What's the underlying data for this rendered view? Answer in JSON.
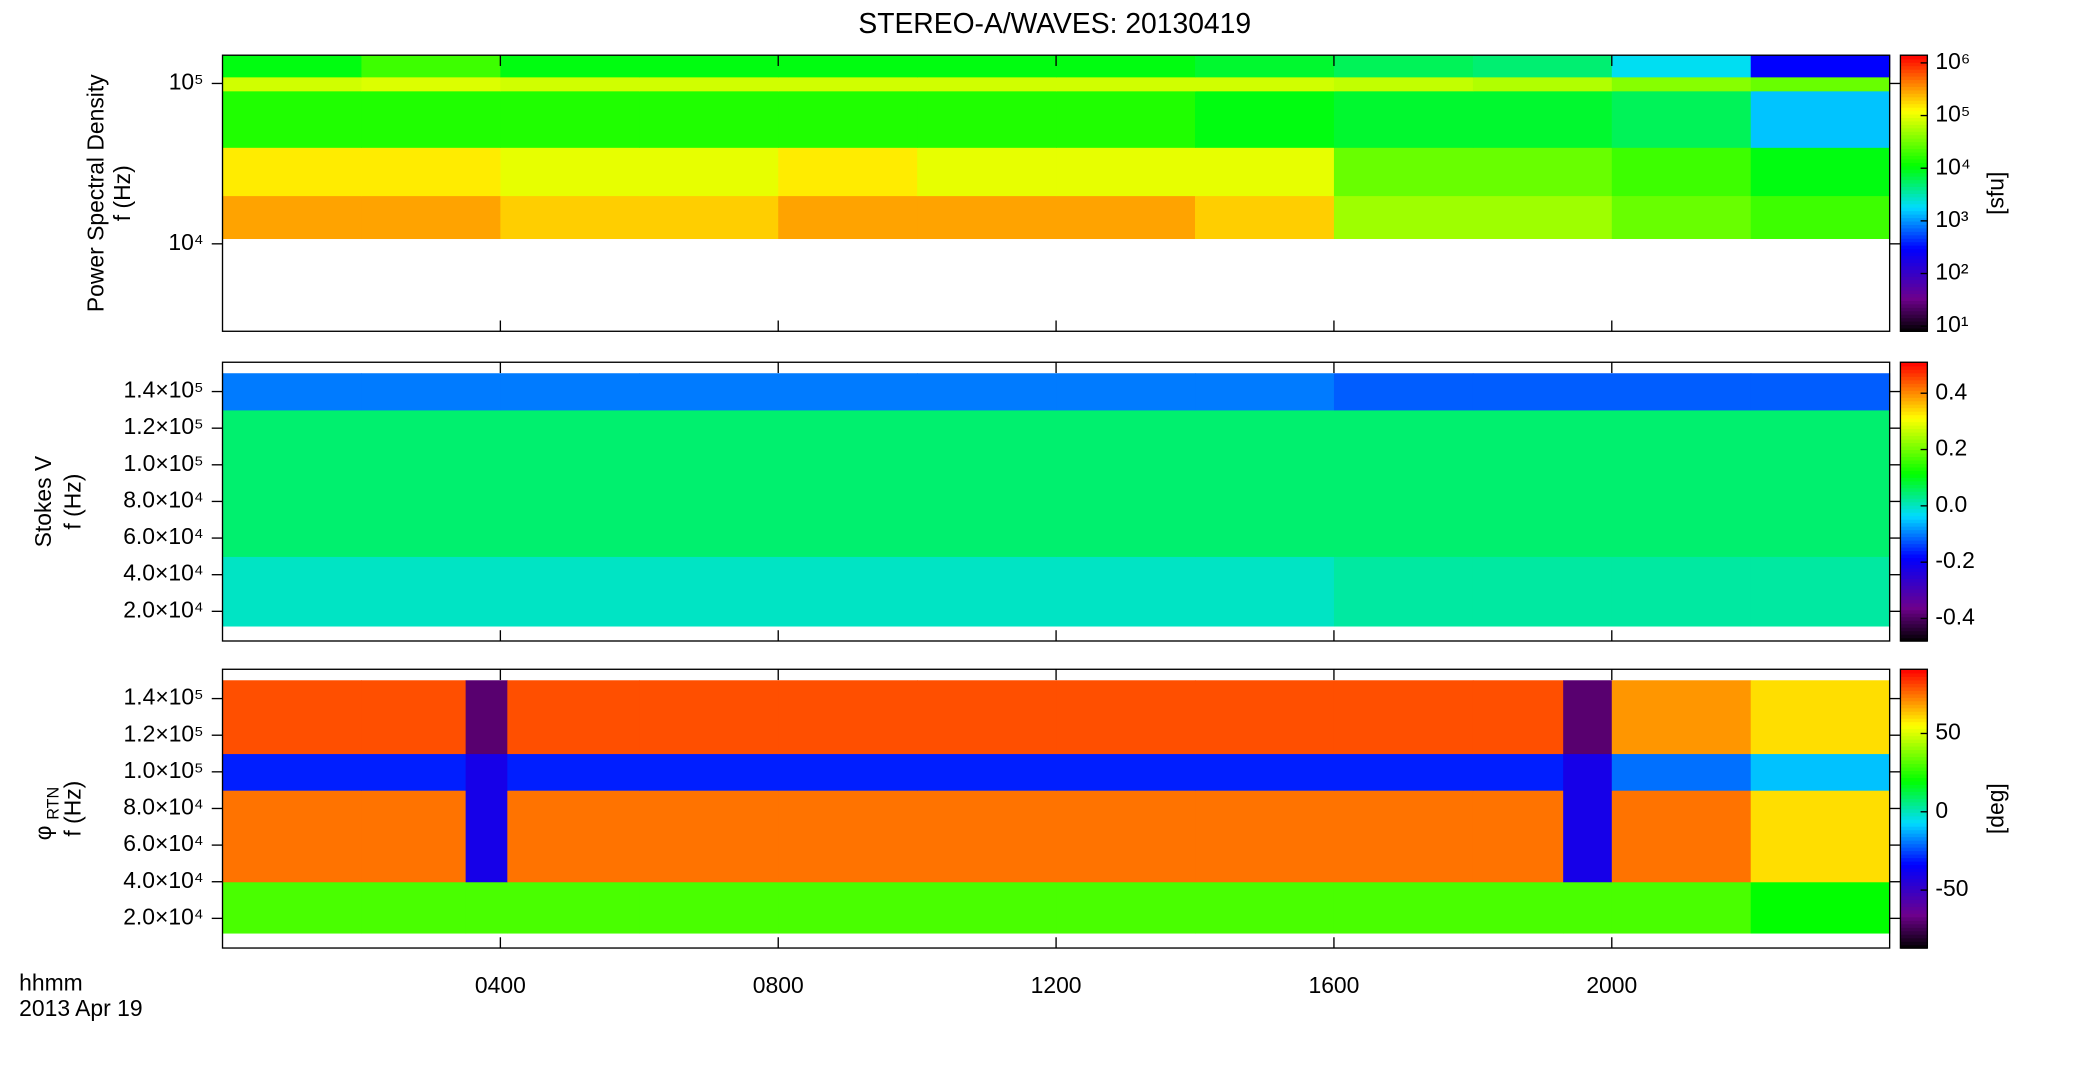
{
  "chart_data": [
    {
      "type": "heatmap",
      "title": "STEREO-A/WAVES: 20130419",
      "y_label": [
        "Power Spectral Density",
        "f (Hz)"
      ],
      "yscale": "log",
      "ylim": [
        2850,
        150000
      ],
      "yticks": [
        {
          "value": 10000,
          "label": "10⁴"
        },
        {
          "value": 100000,
          "label": "10⁵"
        }
      ],
      "xlim": [
        0,
        24
      ],
      "x_edges": [
        0,
        2,
        4,
        6,
        8,
        10,
        12,
        14,
        16,
        18,
        20,
        22,
        24
      ],
      "y_edges": [
        10800,
        20000,
        40000,
        90000,
        110000,
        150000
      ],
      "values": [
        [
          300000,
          300000,
          200000,
          200000,
          300000,
          300000,
          300000,
          200000,
          50000,
          50000,
          30000,
          20000
        ],
        [
          150000,
          150000,
          100000,
          100000,
          150000,
          100000,
          100000,
          100000,
          30000,
          30000,
          20000,
          10000
        ],
        [
          15000,
          15000,
          15000,
          15000,
          15000,
          15000,
          15000,
          10000,
          8000,
          8000,
          6000,
          1500
        ],
        [
          80000,
          90000,
          80000,
          80000,
          80000,
          80000,
          80000,
          80000,
          70000,
          60000,
          40000,
          30000
        ],
        [
          10000,
          20000,
          10000,
          10000,
          10000,
          10000,
          10000,
          8000,
          6000,
          5000,
          2000,
          300
        ]
      ],
      "colormap": "rainbow",
      "cscale": "log",
      "clim": [
        8,
        1400000
      ],
      "cticks": [
        {
          "value": 10,
          "label": "10¹"
        },
        {
          "value": 100,
          "label": "10²"
        },
        {
          "value": 1000,
          "label": "10³"
        },
        {
          "value": 10000,
          "label": "10⁴"
        },
        {
          "value": 100000,
          "label": "10⁵"
        },
        {
          "value": 1000000,
          "label": "10⁶"
        }
      ],
      "cbar_label": "[sfu]"
    },
    {
      "type": "heatmap",
      "y_label": [
        "Stokes V",
        "f (Hz)"
      ],
      "yscale": "linear",
      "ylim": [
        3800,
        156000
      ],
      "yticks": [
        {
          "value": 20000,
          "label": "2.0×10⁴"
        },
        {
          "value": 40000,
          "label": "4.0×10⁴"
        },
        {
          "value": 60000,
          "label": "6.0×10⁴"
        },
        {
          "value": 80000,
          "label": "8.0×10⁴"
        },
        {
          "value": 100000,
          "label": "1.0×10⁵"
        },
        {
          "value": 120000,
          "label": "1.2×10⁵"
        },
        {
          "value": 140000,
          "label": "1.4×10⁵"
        }
      ],
      "xlim": [
        0,
        24
      ],
      "x_edges": [
        0,
        2,
        4,
        6,
        8,
        10,
        12,
        14,
        16,
        18,
        20,
        22,
        24
      ],
      "y_edges": [
        12000,
        50000,
        130000,
        150000
      ],
      "values": [
        [
          0.0,
          0.0,
          0.0,
          0.0,
          0.0,
          0.0,
          0.0,
          0.0,
          0.02,
          0.02,
          0.02,
          0.02
        ],
        [
          0.05,
          0.05,
          0.05,
          0.05,
          0.05,
          0.05,
          0.05,
          0.05,
          0.05,
          0.05,
          0.05,
          0.05
        ],
        [
          -0.1,
          -0.1,
          -0.1,
          -0.1,
          -0.1,
          -0.1,
          -0.1,
          -0.1,
          -0.12,
          -0.12,
          -0.12,
          -0.12
        ]
      ],
      "colormap": "rainbow",
      "cscale": "linear",
      "clim": [
        -0.48,
        0.51
      ],
      "cticks": [
        -0.4,
        -0.2,
        {
          "value": 0,
          "label": "0.0"
        },
        0.2,
        0.4
      ]
    },
    {
      "type": "heatmap",
      "y_label": [
        "f (Hz)"
      ],
      "y_symbol": "φ",
      "y_symbol_sub": "RTN",
      "yscale": "linear",
      "ylim": [
        3800,
        156000
      ],
      "yticks": [
        {
          "value": 20000,
          "label": "2.0×10⁴"
        },
        {
          "value": 40000,
          "label": "4.0×10⁴"
        },
        {
          "value": 60000,
          "label": "6.0×10⁴"
        },
        {
          "value": 80000,
          "label": "8.0×10⁴"
        },
        {
          "value": 100000,
          "label": "1.0×10⁵"
        },
        {
          "value": 120000,
          "label": "1.2×10⁵"
        },
        {
          "value": 140000,
          "label": "1.4×10⁵"
        }
      ],
      "xlim": [
        0,
        24
      ],
      "xticks": [
        {
          "value": 4,
          "label": "0400"
        },
        {
          "value": 8,
          "label": "0800"
        },
        {
          "value": 12,
          "label": "1200"
        },
        {
          "value": 16,
          "label": "1600"
        },
        {
          "value": 20,
          "label": "2000"
        }
      ],
      "x_label": "hhmm",
      "date": "2013 Apr 19",
      "x_edges": [
        0,
        2,
        3.5,
        4.1,
        6,
        8,
        10,
        12,
        14,
        16,
        18,
        19.3,
        20,
        22,
        24
      ],
      "y_edges": [
        12000,
        40000,
        90000,
        110000,
        150000
      ],
      "values": [
        [
          30,
          30,
          30,
          30,
          30,
          30,
          30,
          30,
          30,
          30,
          30,
          30,
          30,
          20
        ],
        [
          75,
          75,
          -40,
          75,
          75,
          75,
          75,
          75,
          75,
          75,
          75,
          -40,
          75,
          60
        ],
        [
          -30,
          -30,
          -40,
          -30,
          -30,
          -30,
          -30,
          -30,
          -30,
          -30,
          -30,
          -40,
          -20,
          -10
        ],
        [
          80,
          80,
          -70,
          80,
          80,
          80,
          80,
          80,
          80,
          80,
          80,
          -70,
          70,
          60
        ]
      ],
      "colormap": "rainbow",
      "cscale": "linear",
      "clim": [
        -87,
        91
      ],
      "cticks": [
        -50,
        0,
        50
      ],
      "cbar_label": "[deg]"
    }
  ]
}
